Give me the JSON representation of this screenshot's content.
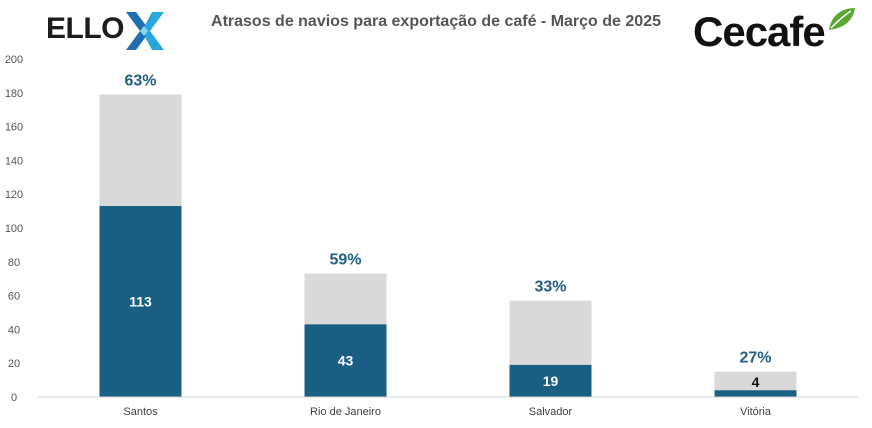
{
  "header": {
    "title": "Atrasos de navios para exportação de café - Março de 2025",
    "logo_left": "ELLO",
    "logo_right": "Cecafe"
  },
  "colors": {
    "delayed": "#195f83",
    "total": "#d9d9d9",
    "percent_text": "#1f6185",
    "axis": "#d0d0d0"
  },
  "chart_data": {
    "type": "bar",
    "stacked": true,
    "title": "Atrasos de navios para exportação de café - Março de 2025",
    "xlabel": "",
    "ylabel": "",
    "ylim": [
      0,
      200
    ],
    "yticks": [
      0,
      20,
      40,
      60,
      80,
      100,
      120,
      140,
      160,
      180,
      200
    ],
    "grid": false,
    "legend": "none",
    "categories": [
      "Santos",
      "Rio de Janeiro",
      "Salvador",
      "Vitória"
    ],
    "series": [
      {
        "values": [
          113,
          43,
          19,
          4
        ]
      },
      {
        "values": [
          66,
          30,
          38,
          11
        ]
      }
    ],
    "data_labels": [
      "113",
      "43",
      "19",
      "4"
    ],
    "percent_labels": [
      "63%",
      "59%",
      "33%",
      "27%"
    ]
  }
}
